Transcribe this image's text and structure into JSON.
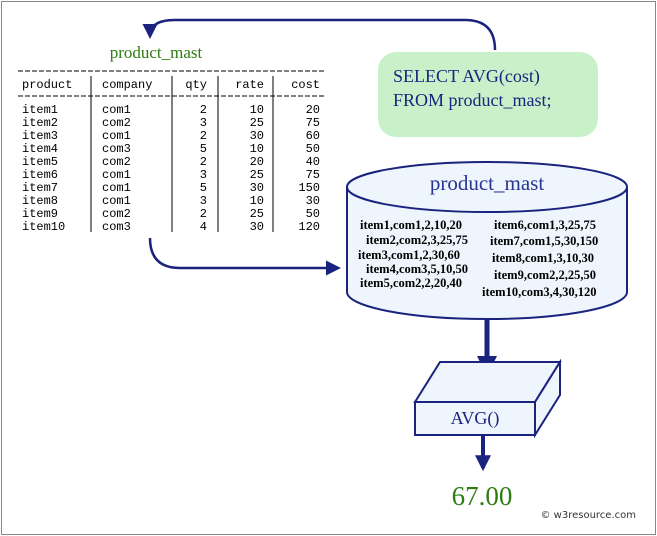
{
  "title": "product_mast",
  "table": {
    "header": [
      "product",
      "company",
      "qty",
      "rate",
      "cost"
    ],
    "rows": [
      [
        "item1",
        "com1",
        2,
        10,
        20
      ],
      [
        "item2",
        "com2",
        3,
        25,
        75
      ],
      [
        "item3",
        "com1",
        2,
        30,
        60
      ],
      [
        "item4",
        "com3",
        5,
        10,
        50
      ],
      [
        "item5",
        "com2",
        2,
        20,
        40
      ],
      [
        "item6",
        "com1",
        3,
        25,
        75
      ],
      [
        "item7",
        "com1",
        5,
        30,
        150
      ],
      [
        "item8",
        "com1",
        3,
        10,
        30
      ],
      [
        "item9",
        "com2",
        2,
        25,
        50
      ],
      [
        "item10",
        "com3",
        4,
        30,
        120
      ]
    ]
  },
  "query": {
    "lines": [
      "SELECT AVG(cost)",
      "FROM product_mast;"
    ]
  },
  "cylinder": {
    "label": "product_mast",
    "records": [
      "item1,com1,2,10,20",
      "item2,com2,3,25,75",
      "item3,com1,2,30,60",
      "item4,com3,5,10,50",
      "item5,com2,2,20,40",
      "item6,com1,3,25,75",
      "item7,com1,5,30,150",
      "item8,com1,3,10,30",
      "item9,com2,2,25,50",
      "item10,com3,4,30,120"
    ]
  },
  "function": "AVG()",
  "result": "67.00",
  "watermark": "© w3resource.com"
}
